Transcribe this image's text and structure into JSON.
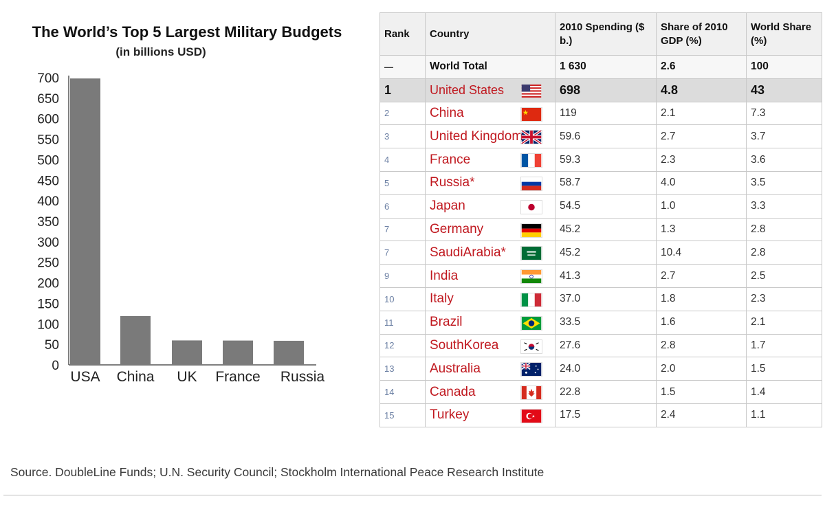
{
  "chart_data": {
    "type": "bar",
    "title": "The World’s Top 5 Largest Military Budgets",
    "subtitle": "(in billions USD)",
    "categories": [
      "USA",
      "China",
      "UK",
      "France",
      "Russia"
    ],
    "values": [
      698,
      119,
      59.6,
      59.3,
      58.7
    ],
    "yticks": [
      0,
      50,
      100,
      150,
      200,
      250,
      300,
      350,
      400,
      450,
      500,
      550,
      600,
      650,
      700
    ],
    "ylim": [
      0,
      700
    ],
    "xlabel": "",
    "ylabel": "",
    "grid": false,
    "bar_color": "#7a7a7a"
  },
  "table": {
    "headers": {
      "rank": "Rank",
      "country": "Country",
      "spending": "2010 Spending ($ b.)",
      "gdp_share": "Share of 2010 GDP (%)",
      "world_share": "World Share (%)"
    },
    "world_total": {
      "rank": "—",
      "country": "World Total",
      "spending": "1 630",
      "gdp_share": "2.6",
      "world_share": "100"
    },
    "rows": [
      {
        "rank": "1",
        "country": "United States",
        "spending": "698",
        "gdp_share": "4.8",
        "world_share": "43",
        "flag": "us-flag-icon"
      },
      {
        "rank": "2",
        "country": "China",
        "spending": "119",
        "gdp_share": "2.1",
        "world_share": "7.3",
        "flag": "china-flag-icon"
      },
      {
        "rank": "3",
        "country": "United Kingdom",
        "spending": "59.6",
        "gdp_share": "2.7",
        "world_share": "3.7",
        "flag": "uk-flag-icon"
      },
      {
        "rank": "4",
        "country": "France",
        "spending": "59.3",
        "gdp_share": "2.3",
        "world_share": "3.6",
        "flag": "france-flag-icon"
      },
      {
        "rank": "5",
        "country": "Russia*",
        "spending": "58.7",
        "gdp_share": "4.0",
        "world_share": "3.5",
        "flag": "russia-flag-icon"
      },
      {
        "rank": "6",
        "country": "Japan",
        "spending": "54.5",
        "gdp_share": "1.0",
        "world_share": "3.3",
        "flag": "japan-flag-icon"
      },
      {
        "rank": "7",
        "country": "Germany",
        "spending": "45.2",
        "gdp_share": "1.3",
        "world_share": "2.8",
        "flag": "germany-flag-icon"
      },
      {
        "rank": "7",
        "country": "SaudiArabia*",
        "spending": "45.2",
        "gdp_share": "10.4",
        "world_share": "2.8",
        "flag": "saudi-arabia-flag-icon"
      },
      {
        "rank": "9",
        "country": "India",
        "spending": "41.3",
        "gdp_share": "2.7",
        "world_share": "2.5",
        "flag": "india-flag-icon"
      },
      {
        "rank": "10",
        "country": "Italy",
        "spending": "37.0",
        "gdp_share": "1.8",
        "world_share": "2.3",
        "flag": "italy-flag-icon"
      },
      {
        "rank": "11",
        "country": "Brazil",
        "spending": "33.5",
        "gdp_share": "1.6",
        "world_share": "2.1",
        "flag": "brazil-flag-icon"
      },
      {
        "rank": "12",
        "country": "SouthKorea",
        "spending": "27.6",
        "gdp_share": "2.8",
        "world_share": "1.7",
        "flag": "south-korea-flag-icon"
      },
      {
        "rank": "13",
        "country": "Australia",
        "spending": "24.0",
        "gdp_share": "2.0",
        "world_share": "1.5",
        "flag": "australia-flag-icon"
      },
      {
        "rank": "14",
        "country": "Canada",
        "spending": "22.8",
        "gdp_share": "1.5",
        "world_share": "1.4",
        "flag": "canada-flag-icon"
      },
      {
        "rank": "15",
        "country": "Turkey",
        "spending": "17.5",
        "gdp_share": "2.4",
        "world_share": "1.1",
        "flag": "turkey-flag-icon"
      }
    ]
  },
  "source": "Source. DoubleLine Funds; U.N. Security Council; Stockholm International Peace Research Institute"
}
